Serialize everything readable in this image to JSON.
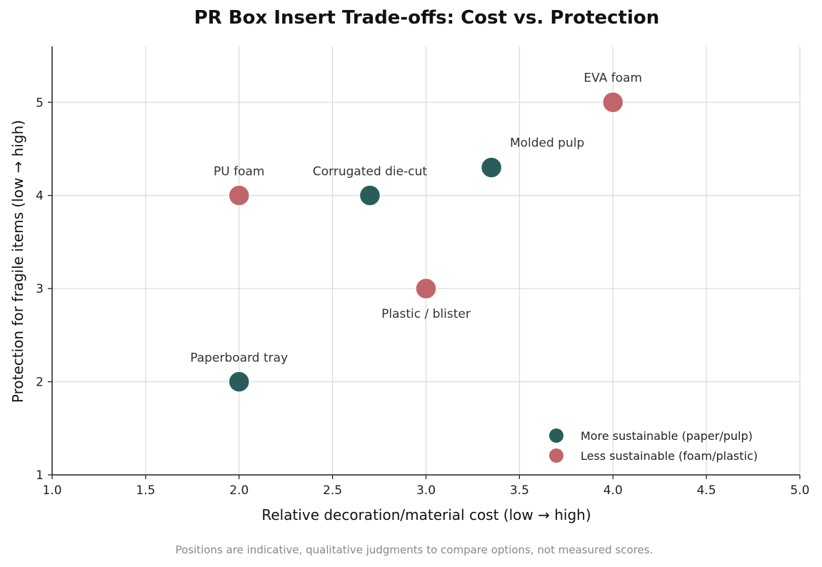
{
  "chart_data": {
    "type": "scatter",
    "title": "PR Box Insert Trade-offs: Cost vs. Protection",
    "xlabel": "Relative decoration/material cost  (low → high)",
    "ylabel": "Protection for fragile items  (low → high)",
    "xlim": [
      1.0,
      5.0
    ],
    "ylim": [
      1,
      5.6
    ],
    "x_ticks": [
      "1.0",
      "1.5",
      "2.0",
      "2.5",
      "3.0",
      "3.5",
      "4.0",
      "4.5",
      "5.0"
    ],
    "y_ticks": [
      "1",
      "2",
      "3",
      "4",
      "5"
    ],
    "grid": true,
    "legend_position": "bottom-right",
    "series": [
      {
        "name": "More sustainable (paper/pulp)",
        "color": "#2a5d5a",
        "points": [
          {
            "label": "Molded pulp",
            "x": 3.35,
            "y": 4.3
          },
          {
            "label": "Corrugated die-cut",
            "x": 2.7,
            "y": 4.0
          },
          {
            "label": "Paperboard tray",
            "x": 2.0,
            "y": 2.0
          }
        ]
      },
      {
        "name": "Less sustainable (foam/plastic)",
        "color": "#c0666a",
        "points": [
          {
            "label": "EVA foam",
            "x": 4.0,
            "y": 5.0
          },
          {
            "label": "PU foam",
            "x": 2.0,
            "y": 4.0
          },
          {
            "label": "Plastic / blister",
            "x": 3.0,
            "y": 3.0
          }
        ]
      }
    ],
    "footnote": "Positions are indicative, qualitative judgments to compare options, not measured scores."
  }
}
